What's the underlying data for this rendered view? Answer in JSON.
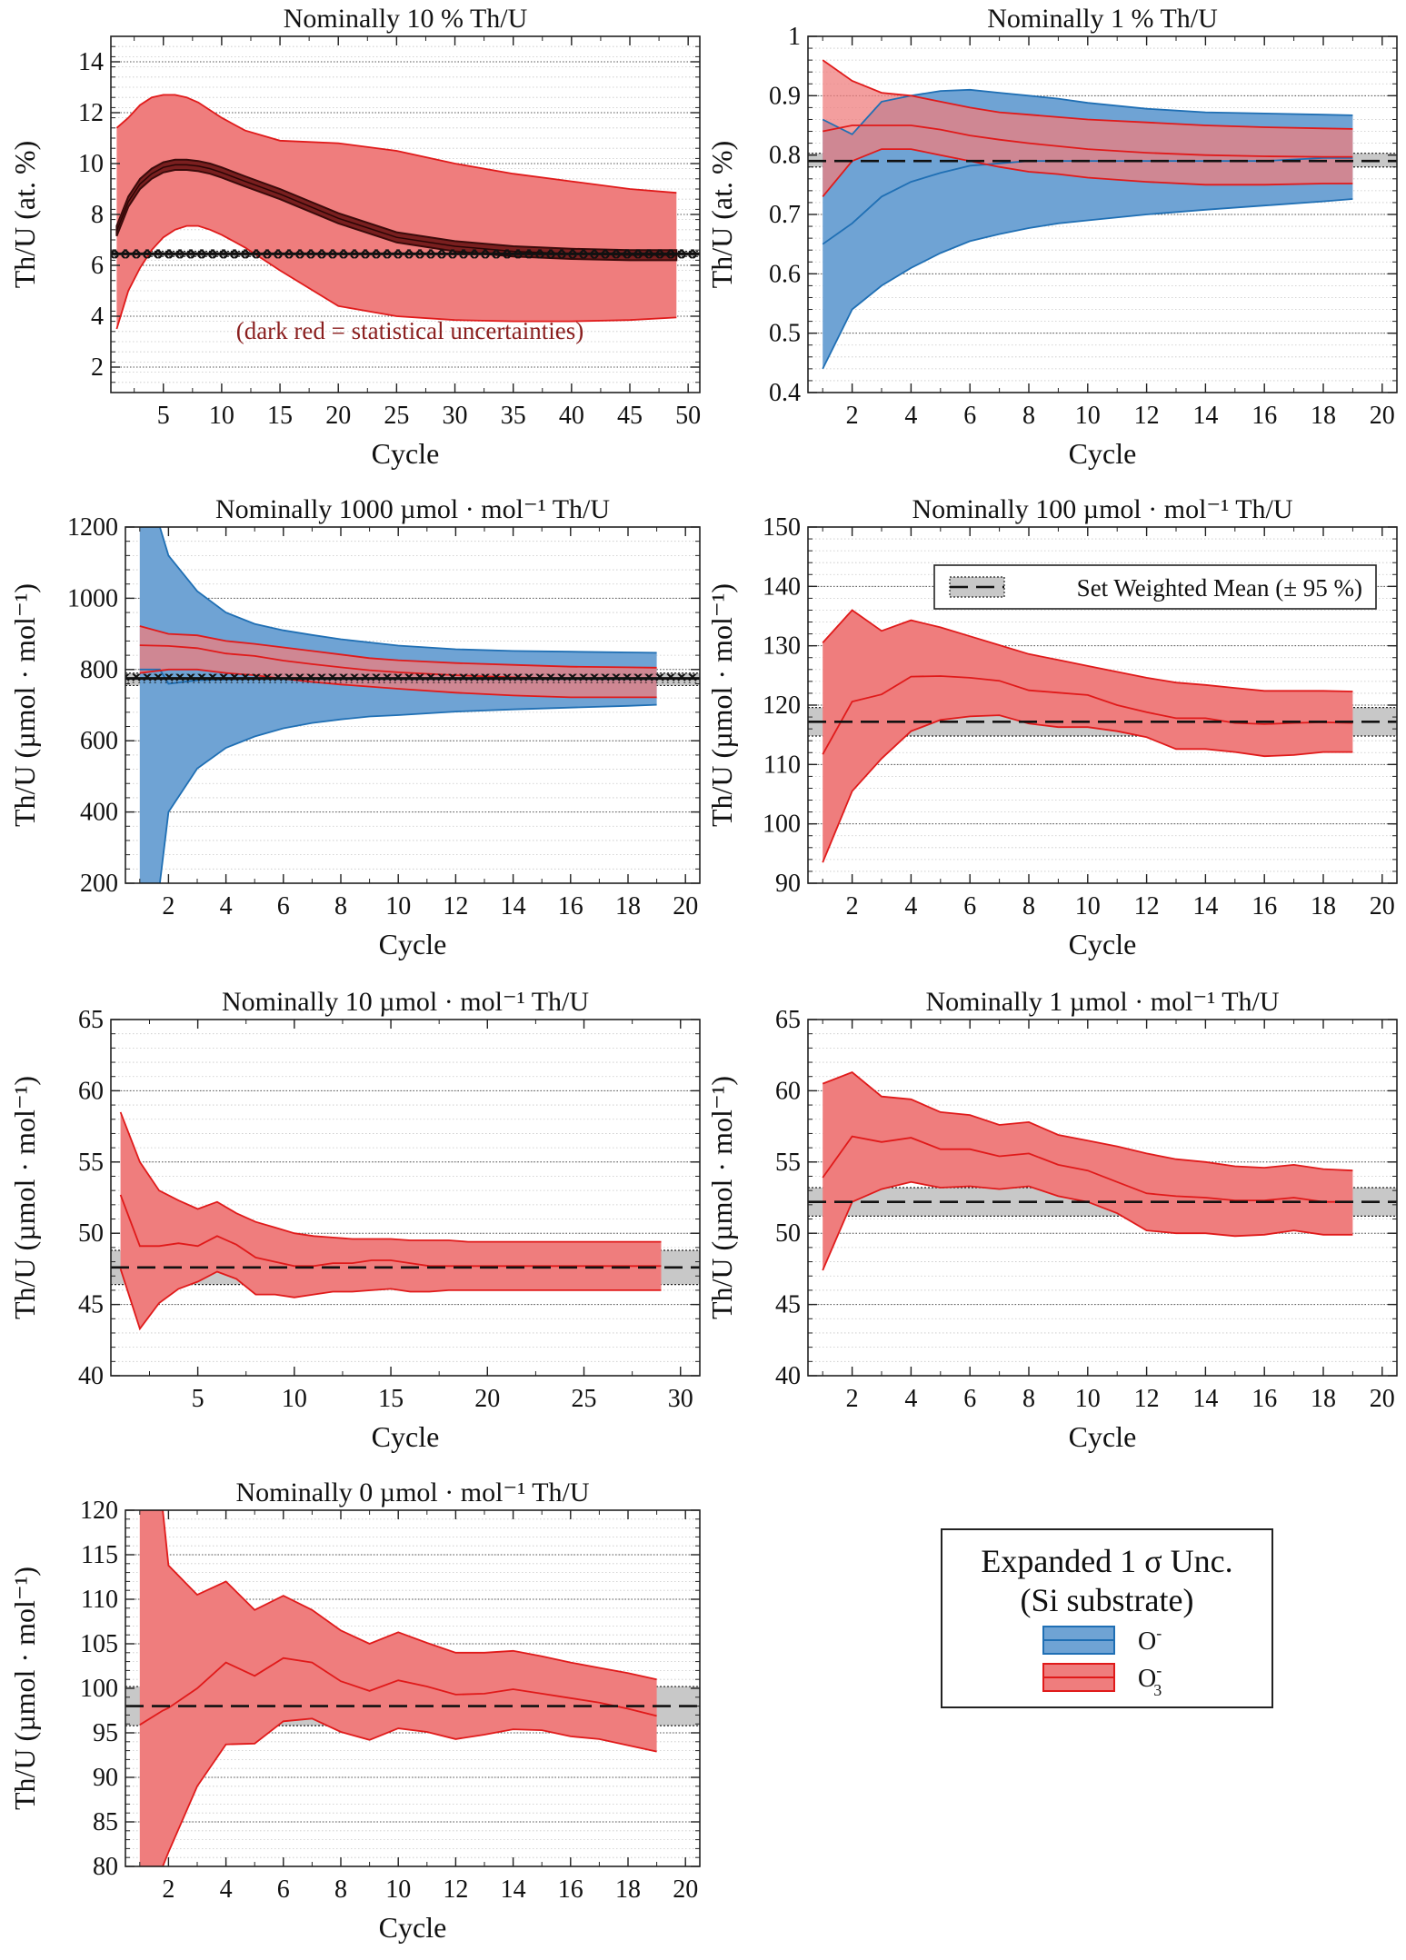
{
  "figure": {
    "legend": {
      "title_line1": "Expanded 1 σ Unc.",
      "title_line2": "(Si substrate)",
      "entries": [
        {
          "label": "O",
          "superscript": "-",
          "subscript": "",
          "fill": "#6fa3d4",
          "line": "#1f6fb4"
        },
        {
          "label": "O",
          "superscript": "-",
          "subscript": "3",
          "fill": "#ef7d7d",
          "line": "#e01a1a"
        }
      ]
    },
    "mean_legend": {
      "label": "Set Weighted Mean (± 95 %)"
    },
    "colors": {
      "blue_fill": "#6fa3d4",
      "blue_line": "#1f6fb4",
      "red_fill": "#ef7d7d",
      "red_line": "#e01a1a",
      "stat_fill": "#7a1f1f",
      "stat_line": "#3a0a0a",
      "overlap_fill": "#8a5b7d",
      "overlap_line": "#8b2f4a",
      "mean_band": "#c8c8c8"
    }
  },
  "chart_data": [
    {
      "type": "area",
      "title": "Nominally 10 % Th/U",
      "xlabel": "Cycle",
      "ylabel": "Th/U (at. %)",
      "xlim": [
        0.5,
        51
      ],
      "ylim": [
        1,
        15
      ],
      "xticks": [
        5,
        10,
        15,
        20,
        25,
        30,
        35,
        40,
        45,
        50
      ],
      "yticks": [
        2,
        4,
        6,
        8,
        10,
        12,
        14
      ],
      "annotation": "(dark red = statistical uncertainties)",
      "weighted_mean": {
        "value": 6.45,
        "low": 6.35,
        "high": 6.55,
        "style": "cross-marked"
      },
      "series": [
        {
          "name": "O3-",
          "color": "red",
          "x": [
            1,
            2,
            3,
            4,
            5,
            6,
            7,
            8,
            9,
            10,
            12,
            15,
            20,
            25,
            30,
            35,
            40,
            45,
            49
          ],
          "upper": [
            11.4,
            11.8,
            12.3,
            12.6,
            12.7,
            12.7,
            12.6,
            12.4,
            12.1,
            11.8,
            11.3,
            10.9,
            10.8,
            10.5,
            10.0,
            9.6,
            9.3,
            9.0,
            8.85
          ],
          "lower": [
            3.5,
            5.0,
            5.9,
            6.6,
            7.1,
            7.4,
            7.55,
            7.55,
            7.4,
            7.2,
            6.7,
            5.8,
            4.4,
            4.0,
            3.85,
            3.8,
            3.8,
            3.85,
            3.95
          ],
          "stat_center": [
            7.35,
            8.5,
            9.2,
            9.6,
            9.85,
            9.95,
            9.95,
            9.9,
            9.8,
            9.65,
            9.3,
            8.8,
            7.85,
            7.1,
            6.75,
            6.55,
            6.45,
            6.4,
            6.4
          ],
          "stat_halfwidth": 0.2
        }
      ]
    },
    {
      "type": "area",
      "title": "Nominally 1 % Th/U",
      "xlabel": "Cycle",
      "ylabel": "Th/U (at. %)",
      "xlim": [
        0.5,
        20.5
      ],
      "ylim": [
        0.4,
        1.0
      ],
      "xticks": [
        2,
        4,
        6,
        8,
        10,
        12,
        14,
        16,
        18,
        20
      ],
      "yticks": [
        0.4,
        0.5,
        0.6,
        0.7,
        0.8,
        0.9,
        1
      ],
      "weighted_mean": {
        "value": 0.79,
        "low": 0.78,
        "high": 0.803,
        "style": "dashed"
      },
      "series": [
        {
          "name": "O-",
          "color": "blue",
          "x": [
            1,
            2,
            3,
            4,
            5,
            6,
            7,
            8,
            9,
            10,
            12,
            14,
            16,
            18,
            19
          ],
          "upper": [
            0.86,
            0.835,
            0.89,
            0.9,
            0.908,
            0.91,
            0.905,
            0.9,
            0.895,
            0.888,
            0.878,
            0.872,
            0.87,
            0.868,
            0.867
          ],
          "lower": [
            0.44,
            0.54,
            0.58,
            0.61,
            0.635,
            0.655,
            0.667,
            0.677,
            0.685,
            0.69,
            0.7,
            0.708,
            0.715,
            0.722,
            0.726
          ],
          "center": [
            0.65,
            0.685,
            0.73,
            0.755,
            0.77,
            0.782,
            0.786,
            0.79,
            0.79,
            0.79,
            0.79,
            0.79,
            0.79,
            0.795,
            0.795
          ]
        },
        {
          "name": "O3-",
          "color": "red",
          "x": [
            1,
            2,
            3,
            4,
            5,
            6,
            7,
            8,
            9,
            10,
            12,
            14,
            16,
            18,
            19
          ],
          "upper": [
            0.96,
            0.925,
            0.905,
            0.9,
            0.89,
            0.88,
            0.872,
            0.868,
            0.864,
            0.86,
            0.855,
            0.85,
            0.847,
            0.845,
            0.844
          ],
          "lower": [
            0.73,
            0.79,
            0.81,
            0.81,
            0.8,
            0.79,
            0.78,
            0.772,
            0.768,
            0.762,
            0.755,
            0.75,
            0.75,
            0.752,
            0.752
          ],
          "center": [
            0.84,
            0.85,
            0.85,
            0.85,
            0.843,
            0.833,
            0.826,
            0.82,
            0.815,
            0.81,
            0.804,
            0.8,
            0.798,
            0.797,
            0.797
          ]
        }
      ]
    },
    {
      "type": "area",
      "title": "Nominally 1000 µmol · mol⁻¹ Th/U",
      "xlabel": "Cycle",
      "ylabel": "Th/U (µmol · mol⁻¹)",
      "xlim": [
        0.5,
        20.5
      ],
      "ylim": [
        200,
        1200
      ],
      "xticks": [
        2,
        4,
        6,
        8,
        10,
        12,
        14,
        16,
        18,
        20
      ],
      "yticks": [
        200,
        400,
        600,
        800,
        1000,
        1200
      ],
      "weighted_mean": {
        "value": 775,
        "low": 755,
        "high": 790,
        "style": "cross-marked"
      },
      "series": [
        {
          "name": "O-",
          "color": "blue",
          "x": [
            1,
            1.7,
            2,
            3,
            4,
            5,
            6,
            7,
            8,
            9,
            10,
            12,
            14,
            16,
            18,
            19
          ],
          "upper": [
            1200,
            1200,
            1120,
            1020,
            960,
            928,
            910,
            897,
            885,
            876,
            867,
            857,
            852,
            850,
            848,
            847
          ],
          "lower": [
            200,
            200,
            400,
            522,
            580,
            612,
            635,
            650,
            660,
            668,
            672,
            682,
            688,
            693,
            698,
            701
          ],
          "center": [
            800,
            800,
            760,
            770,
            772,
            773,
            773,
            773,
            773,
            773,
            773,
            773,
            773,
            773,
            773,
            773
          ]
        },
        {
          "name": "O3-",
          "color": "red",
          "x": [
            1,
            2,
            3,
            4,
            5,
            6,
            7,
            8,
            9,
            10,
            12,
            14,
            16,
            18,
            19
          ],
          "upper": [
            922,
            900,
            896,
            880,
            872,
            862,
            852,
            842,
            832,
            826,
            818,
            813,
            808,
            806,
            805
          ],
          "lower": [
            790,
            800,
            800,
            790,
            784,
            774,
            765,
            758,
            752,
            746,
            735,
            727,
            722,
            722,
            722
          ],
          "center": [
            868,
            866,
            860,
            845,
            838,
            825,
            815,
            806,
            798,
            792,
            784,
            778,
            775,
            774,
            774
          ]
        }
      ]
    },
    {
      "type": "area",
      "title": "Nominally 100 µmol · mol⁻¹ Th/U",
      "xlabel": "Cycle",
      "ylabel": "Th/U (µmol · mol⁻¹)",
      "xlim": [
        0.5,
        20.5
      ],
      "ylim": [
        90,
        150
      ],
      "xticks": [
        2,
        4,
        6,
        8,
        10,
        12,
        14,
        16,
        18,
        20
      ],
      "yticks": [
        90,
        100,
        110,
        120,
        130,
        140,
        150
      ],
      "weighted_mean": {
        "value": 117.2,
        "low": 114.8,
        "high": 119.6,
        "style": "dashed"
      },
      "series": [
        {
          "name": "O3-",
          "color": "red",
          "x": [
            1,
            2,
            3,
            4,
            5,
            6,
            7,
            8,
            9,
            10,
            11,
            12,
            13,
            14,
            15,
            16,
            17,
            18,
            19
          ],
          "upper": [
            130.5,
            136.0,
            132.5,
            134.3,
            133.1,
            131.6,
            130.1,
            128.6,
            127.6,
            126.6,
            125.6,
            124.6,
            123.8,
            123.4,
            122.9,
            122.4,
            122.4,
            122.4,
            122.3
          ],
          "lower": [
            93.5,
            105.5,
            111.0,
            115.6,
            117.5,
            118.1,
            118.3,
            116.9,
            116.3,
            116.3,
            115.6,
            114.6,
            112.6,
            112.6,
            112.1,
            111.4,
            111.6,
            112.1,
            112.1
          ],
          "center": [
            111.7,
            120.6,
            121.8,
            124.8,
            124.9,
            124.6,
            124.1,
            122.5,
            122.1,
            121.7,
            120.0,
            118.8,
            117.8,
            117.8,
            117.0,
            116.8,
            117.0,
            117.1,
            117.0
          ]
        }
      ]
    },
    {
      "type": "area",
      "title": "Nominally 10 µmol · mol⁻¹ Th/U",
      "xlabel": "Cycle",
      "ylabel": "Th/U (µmol · mol⁻¹)",
      "xlim": [
        0.5,
        31
      ],
      "ylim": [
        40,
        65
      ],
      "xticks": [
        5,
        10,
        15,
        20,
        25,
        30
      ],
      "yticks": [
        40,
        45,
        50,
        55,
        60,
        65
      ],
      "weighted_mean": {
        "value": 47.6,
        "low": 46.4,
        "high": 48.8,
        "style": "dashed"
      },
      "series": [
        {
          "name": "O3-",
          "color": "red",
          "x": [
            1,
            2,
            3,
            4,
            5,
            6,
            7,
            8,
            9,
            10,
            11,
            12,
            13,
            14,
            15,
            16,
            17,
            18,
            19,
            20,
            21,
            22,
            23,
            24,
            25,
            26,
            27,
            28,
            29
          ],
          "upper": [
            58.5,
            55.0,
            53.0,
            52.3,
            51.7,
            52.2,
            51.4,
            50.8,
            50.4,
            50.0,
            49.8,
            49.7,
            49.6,
            49.6,
            49.6,
            49.5,
            49.5,
            49.5,
            49.4,
            49.4,
            49.4,
            49.4,
            49.4,
            49.4,
            49.4,
            49.4,
            49.4,
            49.4,
            49.4
          ],
          "lower": [
            47.5,
            43.3,
            45.1,
            46.1,
            46.6,
            47.3,
            46.8,
            45.7,
            45.7,
            45.5,
            45.7,
            45.9,
            45.9,
            46.0,
            46.1,
            45.9,
            45.9,
            46.0,
            46.0,
            46.0,
            46.0,
            46.0,
            46.0,
            46.0,
            46.0,
            46.0,
            46.0,
            46.0,
            46.0
          ],
          "center": [
            52.7,
            49.1,
            49.1,
            49.3,
            49.1,
            49.8,
            49.2,
            48.3,
            48.0,
            47.7,
            47.7,
            47.9,
            47.9,
            48.1,
            48.1,
            47.9,
            47.7,
            47.7,
            47.7,
            47.7,
            47.7,
            47.7,
            47.7,
            47.7,
            47.7,
            47.7,
            47.7,
            47.7,
            47.7
          ]
        }
      ]
    },
    {
      "type": "area",
      "title": "Nominally 1 µmol · mol⁻¹ Th/U",
      "xlabel": "Cycle",
      "ylabel": "Th/U (µmol · mol⁻¹)",
      "xlim": [
        0.5,
        20.5
      ],
      "ylim": [
        40,
        65
      ],
      "xticks": [
        2,
        4,
        6,
        8,
        10,
        12,
        14,
        16,
        18,
        20
      ],
      "yticks": [
        40,
        45,
        50,
        55,
        60,
        65
      ],
      "weighted_mean": {
        "value": 52.2,
        "low": 51.2,
        "high": 53.2,
        "style": "dashed"
      },
      "series": [
        {
          "name": "O3-",
          "color": "red",
          "x": [
            1,
            2,
            3,
            4,
            5,
            6,
            7,
            8,
            9,
            10,
            11,
            12,
            13,
            14,
            15,
            16,
            17,
            18,
            19
          ],
          "upper": [
            60.5,
            61.3,
            59.6,
            59.4,
            58.5,
            58.3,
            57.6,
            57.8,
            56.9,
            56.5,
            56.1,
            55.6,
            55.2,
            55.0,
            54.7,
            54.6,
            54.8,
            54.5,
            54.4
          ],
          "lower": [
            47.4,
            52.2,
            53.1,
            53.6,
            53.2,
            53.3,
            53.1,
            53.3,
            52.6,
            52.2,
            51.4,
            50.2,
            50.0,
            50.0,
            49.8,
            49.9,
            50.2,
            49.9,
            49.9
          ],
          "center": [
            53.9,
            56.8,
            56.4,
            56.7,
            55.9,
            55.9,
            55.4,
            55.6,
            54.8,
            54.4,
            53.6,
            52.8,
            52.6,
            52.5,
            52.3,
            52.3,
            52.5,
            52.2,
            52.2
          ]
        }
      ]
    },
    {
      "type": "area",
      "title": "Nominally 0 µmol · mol⁻¹ Th/U",
      "xlabel": "Cycle",
      "ylabel": "Th/U (µmol · mol⁻¹)",
      "xlim": [
        0.5,
        20.5
      ],
      "ylim": [
        80,
        120
      ],
      "xticks": [
        2,
        4,
        6,
        8,
        10,
        12,
        14,
        16,
        18,
        20
      ],
      "yticks": [
        80,
        85,
        90,
        95,
        100,
        105,
        110,
        115,
        120
      ],
      "weighted_mean": {
        "value": 98.0,
        "low": 95.8,
        "high": 100.2,
        "style": "dashed"
      },
      "series": [
        {
          "name": "O3-",
          "color": "red",
          "x": [
            1,
            1.8,
            2,
            3,
            4,
            5,
            6,
            7,
            8,
            9,
            10,
            11,
            12,
            13,
            14,
            15,
            16,
            17,
            18,
            19
          ],
          "upper": [
            120,
            120,
            113.8,
            110.5,
            112.0,
            108.8,
            110.4,
            108.8,
            106.5,
            105.0,
            106.3,
            105.1,
            104.0,
            104.0,
            104.2,
            103.6,
            102.9,
            102.3,
            101.7,
            101.0
          ],
          "lower": [
            80,
            80,
            81.6,
            89.0,
            93.7,
            93.8,
            96.3,
            96.6,
            95.1,
            94.2,
            95.5,
            95.1,
            94.3,
            94.8,
            95.4,
            95.3,
            94.6,
            94.3,
            93.6,
            92.9
          ],
          "center": [
            95.9,
            97.5,
            97.8,
            100.0,
            102.9,
            101.4,
            103.4,
            102.9,
            100.8,
            99.7,
            100.9,
            100.2,
            99.3,
            99.4,
            99.9,
            99.4,
            98.9,
            98.4,
            97.7,
            96.9
          ]
        }
      ]
    }
  ]
}
